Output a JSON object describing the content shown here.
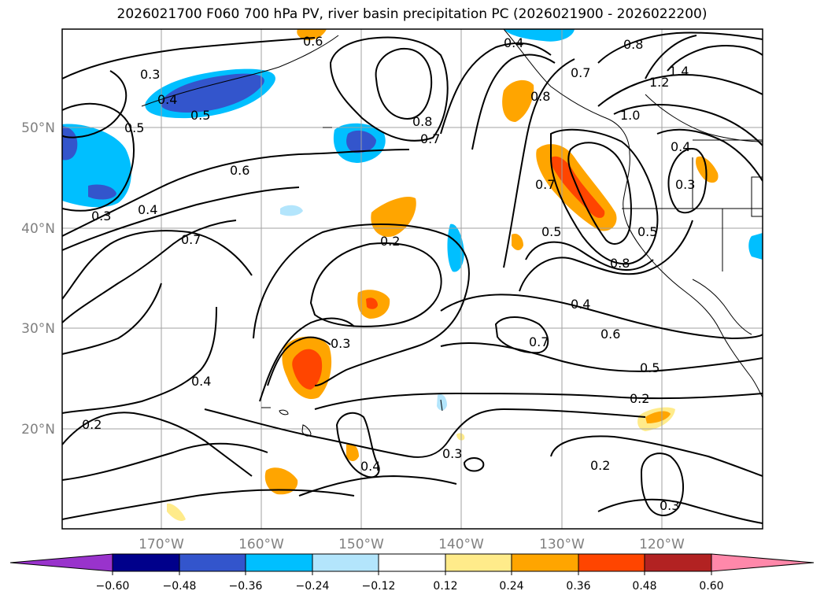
{
  "title": "2026021700 F060 700 hPa PV, river basin precipitation PC (2026021900 - 2026022200)",
  "axes": {
    "lat_labels": [
      "50°N",
      "40°N",
      "30°N",
      "20°N"
    ],
    "lon_labels": [
      "170°W",
      "160°W",
      "150°W",
      "140°W",
      "130°W",
      "120°W"
    ],
    "tick_color": "#808080",
    "grid_color": "#a0a0a0"
  },
  "contour_labels": [
    "0.3",
    "0.4",
    "0.5",
    "0.6",
    "0.5",
    "0.6",
    "0.4",
    "0.3",
    "0.7",
    "0.8",
    "0.7",
    "0.2",
    "0.3",
    "0.4",
    "0.4",
    "0.2",
    "0.4",
    "0.3",
    "0.8",
    "0.7",
    "0.8",
    "1.0",
    "1.4",
    "1.2",
    "0.4",
    "0.3",
    "0.7",
    "0.5",
    "0.8",
    "0.5",
    "0.4",
    "0.7",
    "0.6",
    "0.5",
    "0.2",
    "0.2",
    "0.3"
  ],
  "colorbar": {
    "colors": [
      "#9933cc",
      "#00008b",
      "#3355cc",
      "#00bfff",
      "#b3e5fc",
      "#ffffff",
      "#ffeb8a",
      "#ffa500",
      "#ff4500",
      "#b22222",
      "#ff88aa"
    ],
    "tick_labels": [
      "−0.60",
      "−0.48",
      "−0.36",
      "−0.24",
      "−0.12",
      "0.12",
      "0.24",
      "0.36",
      "0.48",
      "0.60"
    ]
  }
}
